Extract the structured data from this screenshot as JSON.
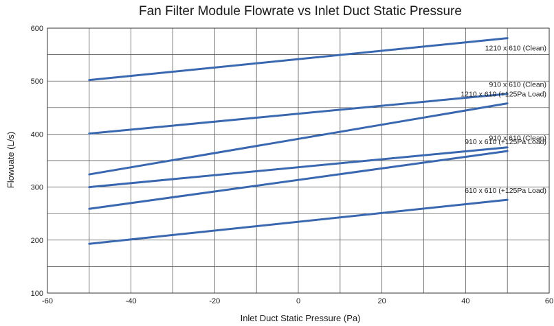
{
  "chart_data": {
    "type": "line",
    "title": "Fan Filter Module Flowrate vs Inlet Duct Static Pressure",
    "xlabel": "Inlet Duct Static Pressure (Pa)",
    "ylabel": "Flowuate (L/s)",
    "xlim": [
      -60,
      60
    ],
    "ylim": [
      100,
      600
    ],
    "xticks": [
      -60,
      -40,
      -20,
      0,
      20,
      40,
      60
    ],
    "yticks": [
      100,
      200,
      300,
      400,
      500,
      600
    ],
    "x_gridlines": [
      -60,
      -50,
      -40,
      -30,
      -20,
      -10,
      0,
      10,
      20,
      30,
      40,
      50,
      60
    ],
    "y_gridlines": [
      100,
      150,
      200,
      250,
      300,
      350,
      400,
      450,
      500,
      550,
      600
    ],
    "grid": true,
    "legend": "inline labels near right end of lines",
    "line_color": "#3a68b0",
    "series": [
      {
        "name": "1210 x 610 (Clean)",
        "x": [
          -50,
          50
        ],
        "y": [
          502,
          581
        ]
      },
      {
        "name": "910 x 610 (Clean)",
        "x": [
          -50,
          50
        ],
        "y": [
          401,
          476
        ]
      },
      {
        "name": "1210 x 610 (+125Pa Load)",
        "x": [
          -50,
          50
        ],
        "y": [
          324,
          458
        ]
      },
      {
        "name": "910 x 610 (Clean)",
        "x": [
          -50,
          50
        ],
        "y": [
          300,
          375
        ]
      },
      {
        "name": "910 x 610 (+125Pa Load)",
        "x": [
          -50,
          50
        ],
        "y": [
          259,
          368
        ]
      },
      {
        "name": "610 x 610 (+125Pa Load)",
        "x": [
          -50,
          50
        ],
        "y": [
          193,
          276
        ]
      }
    ]
  }
}
